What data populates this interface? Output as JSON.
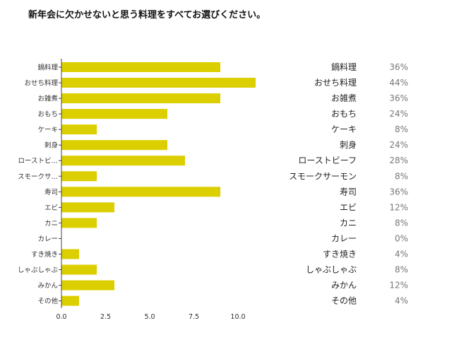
{
  "title": "新年会に欠かせないと思う料理をすべてお選びください。",
  "chart_data": {
    "type": "bar",
    "orientation": "horizontal",
    "bar_color": "#dccf00",
    "axis_color": "#444444",
    "categories": [
      "鍋料理",
      "おせち料理",
      "お雑煮",
      "おもち",
      "ケーキ",
      "刺身",
      "ローストビ…",
      "スモークサ…",
      "寿司",
      "エビ",
      "カニ",
      "カレー",
      "すき焼き",
      "しゃぶしゃぶ",
      "みかん",
      "その他"
    ],
    "values": [
      9,
      11,
      9,
      6,
      2,
      6,
      7,
      2,
      9,
      3,
      2,
      0,
      1,
      2,
      3,
      1
    ],
    "xlim": [
      0,
      11
    ],
    "xticks": [
      "0.0",
      "2.5",
      "5.0",
      "7.5",
      "10.0"
    ],
    "xtick_values": [
      0,
      2.5,
      5,
      7.5,
      10
    ],
    "grid": false,
    "table": {
      "names": [
        "鍋料理",
        "おせち料理",
        "お雑煮",
        "おもち",
        "ケーキ",
        "刺身",
        "ローストビーフ",
        "スモークサーモン",
        "寿司",
        "エビ",
        "カニ",
        "カレー",
        "すき焼き",
        "しゃぶしゃぶ",
        "みかん",
        "その他"
      ],
      "percents": [
        "36%",
        "44%",
        "36%",
        "24%",
        "8%",
        "24%",
        "28%",
        "8%",
        "36%",
        "12%",
        "8%",
        "0%",
        "4%",
        "8%",
        "12%",
        "4%"
      ]
    }
  }
}
